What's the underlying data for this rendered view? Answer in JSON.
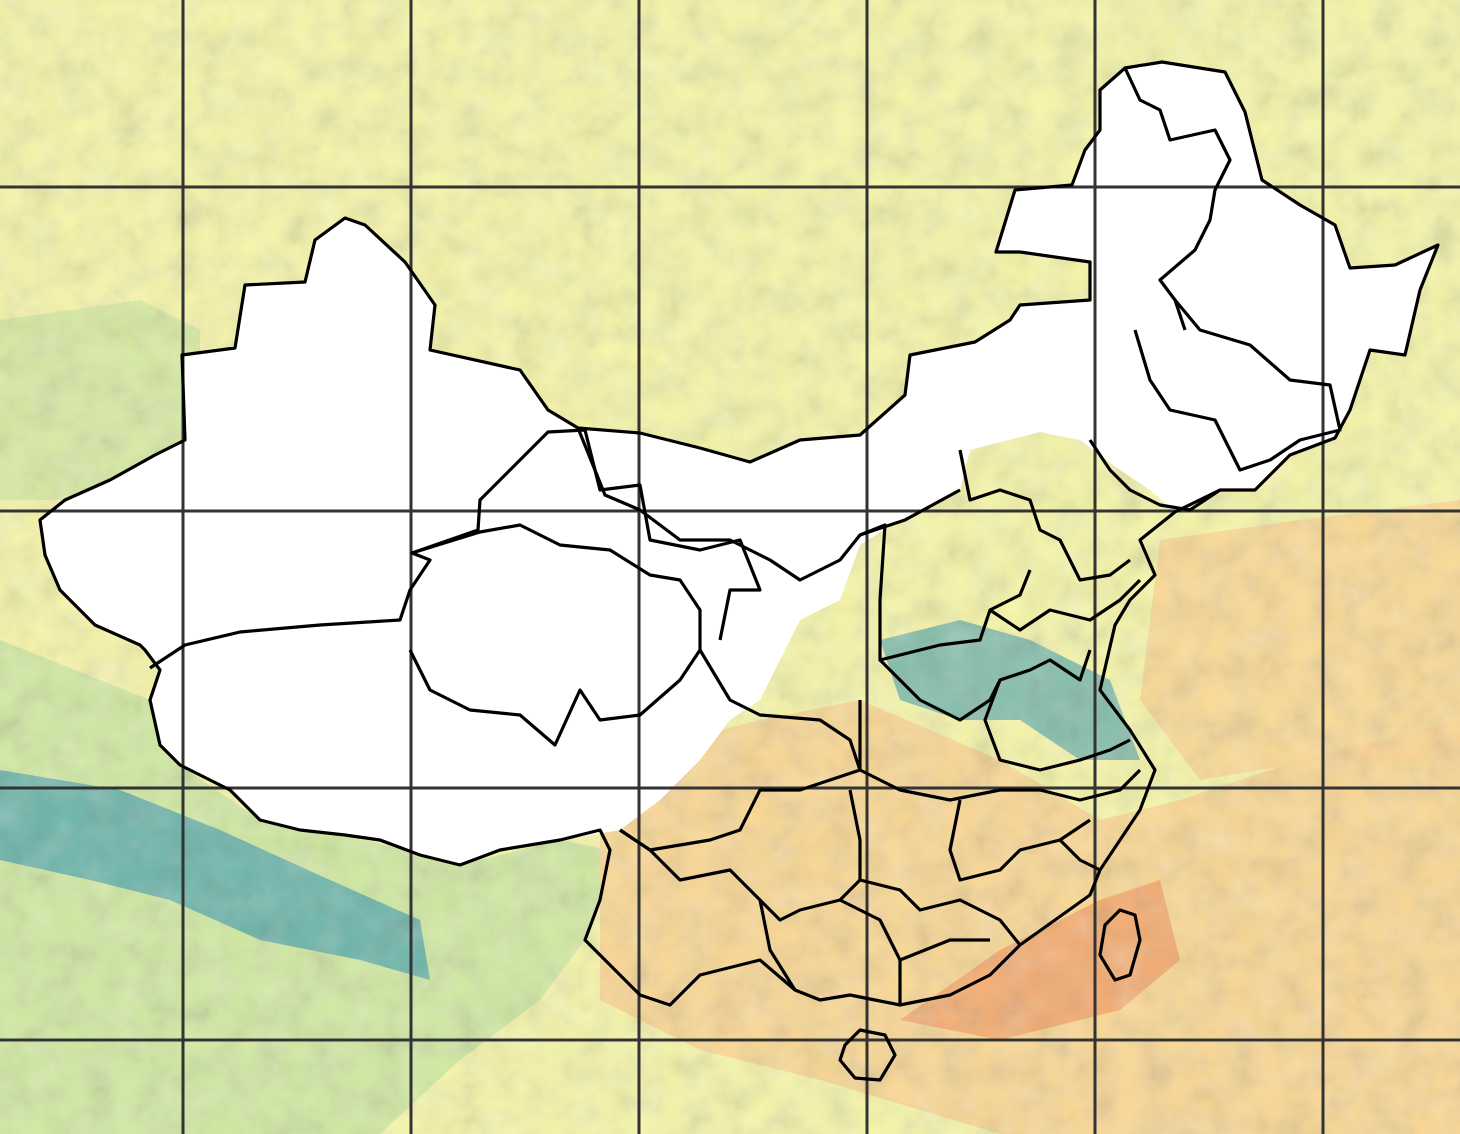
{
  "map": {
    "colors": {
      "background": "#ffffff",
      "boundary": "#000000",
      "graticule": "#333333",
      "sea": "#eef28e",
      "low_blue": "#3b63a8",
      "teal": "#52a7ac",
      "green": "#9fd38f",
      "light_green": "#cfe9a0",
      "yellow": "#f7f6a8",
      "light_orange": "#fbd590",
      "orange": "#f4a469",
      "red": "#d7503f"
    },
    "graticule": {
      "vertical_lines": 6,
      "horizontal_lines": 4
    },
    "boundary_names": [
      "china-outline",
      "xinjiang-tibet-border",
      "qinghai",
      "gansu",
      "inner-mongolia",
      "heilongjiang",
      "jilin",
      "liaoning",
      "hebei",
      "shandong",
      "henan",
      "jiangsu-anhui",
      "sichuan-chongqing",
      "hubei",
      "hunan-jiangxi",
      "yunnan-guizhou",
      "guangxi-guangdong",
      "fujian-zhejiang",
      "hainan",
      "taiwan"
    ]
  }
}
